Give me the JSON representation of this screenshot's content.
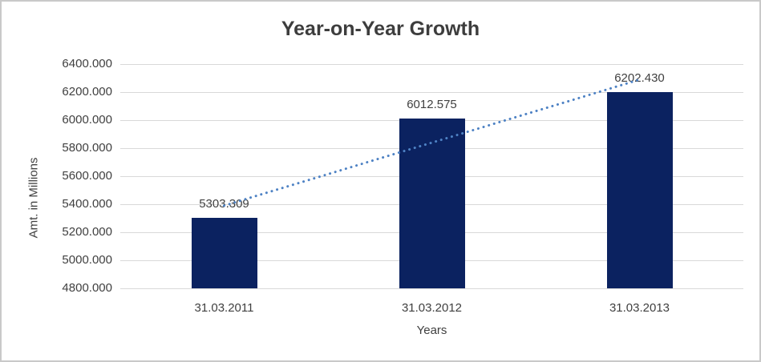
{
  "chart_data": {
    "type": "bar",
    "title": "Year-on-Year Growth",
    "categories": [
      "31.03.2011",
      "31.03.2012",
      "31.03.2013"
    ],
    "values": [
      5303.309,
      6012.575,
      6202.43
    ],
    "data_labels": [
      "5303.309",
      "6012.575",
      "6202.430"
    ],
    "xlabel": "Years",
    "ylabel": "Amt. in Millions",
    "ylim": [
      4800,
      6400
    ],
    "ytick_step": 200,
    "ytick_decimals": 3,
    "ytick_labels": [
      "4800.000",
      "5000.000",
      "5200.000",
      "5400.000",
      "5600.000",
      "5800.000",
      "6000.000",
      "6200.000",
      "6400.000"
    ],
    "grid": true,
    "legend": "none",
    "trendline": {
      "type": "linear",
      "style": "dotted",
      "color": "#4e82c4"
    },
    "colors": {
      "bar": "#0b2260",
      "gridline": "#d9d9d9",
      "text": "#404040",
      "title": "#3d3d3d",
      "border": "#c9c9c9",
      "background": "#ffffff"
    }
  }
}
